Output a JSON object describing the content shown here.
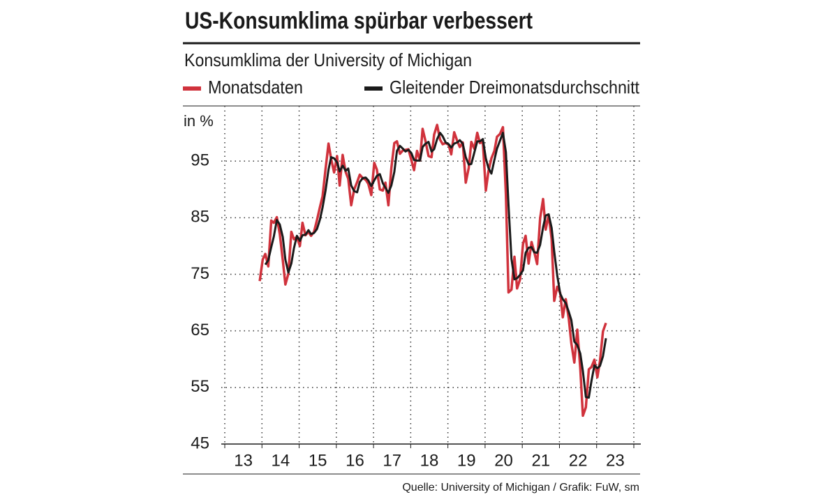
{
  "chart_data": {
    "type": "line",
    "title": "US-Konsumklima spürbar verbessert",
    "subtitle": "Konsumklima der University of Michigan",
    "y_unit_label": "in %",
    "source": "Quelle: University of Michigan / Grafik: FuW, sm",
    "x": [
      13.94,
      14.02,
      14.09,
      14.17,
      14.25,
      14.32,
      14.4,
      14.48,
      14.56,
      14.63,
      14.71,
      14.79,
      14.86,
      14.94,
      15.02,
      15.09,
      15.17,
      15.25,
      15.32,
      15.4,
      15.48,
      15.56,
      15.63,
      15.71,
      15.79,
      15.86,
      15.94,
      16.02,
      16.09,
      16.17,
      16.25,
      16.32,
      16.4,
      16.48,
      16.56,
      16.63,
      16.71,
      16.79,
      16.86,
      16.94,
      17.02,
      17.09,
      17.17,
      17.25,
      17.32,
      17.4,
      17.48,
      17.56,
      17.63,
      17.71,
      17.79,
      17.86,
      17.94,
      18.02,
      18.09,
      18.17,
      18.25,
      18.32,
      18.4,
      18.48,
      18.56,
      18.63,
      18.71,
      18.79,
      18.86,
      18.94,
      19.02,
      19.09,
      19.17,
      19.25,
      19.32,
      19.4,
      19.48,
      19.56,
      19.63,
      19.71,
      19.79,
      19.86,
      19.94,
      20.02,
      20.09,
      20.17,
      20.25,
      20.32,
      20.4,
      20.48,
      20.56,
      20.63,
      20.71,
      20.79,
      20.86,
      20.94,
      21.02,
      21.09,
      21.17,
      21.25,
      21.32,
      21.4,
      21.48,
      21.56,
      21.63,
      21.71,
      21.79,
      21.86,
      21.94,
      22.02,
      22.09,
      22.17,
      22.25,
      22.32,
      22.4,
      22.48,
      22.56,
      22.63,
      22.71,
      22.79,
      22.86,
      22.94,
      23.02,
      23.09,
      23.17,
      23.25
    ],
    "series": [
      {
        "name": "Monatsdaten",
        "color": "#d0323c",
        "values": [
          73.8,
          77.6,
          78.6,
          76.4,
          84.5,
          84.1,
          85.1,
          82.1,
          77.5,
          73.2,
          75.1,
          82.5,
          81.2,
          81.6,
          80.0,
          84.1,
          81.9,
          82.5,
          81.8,
          82.5,
          84.6,
          86.9,
          88.8,
          93.6,
          98.1,
          95.4,
          93.0,
          95.9,
          90.7,
          96.1,
          93.1,
          91.9,
          87.2,
          90.0,
          91.3,
          92.6,
          92.0,
          91.7,
          91.0,
          89.0,
          94.7,
          93.5,
          90.0,
          89.8,
          91.2,
          87.2,
          93.8,
          98.2,
          98.5,
          96.3,
          96.9,
          97.0,
          97.1,
          95.1,
          93.4,
          96.8,
          95.1,
          100.7,
          98.5,
          95.9,
          95.7,
          99.7,
          101.4,
          98.8,
          98.0,
          98.2,
          97.9,
          96.2,
          100.1,
          98.6,
          97.5,
          98.3,
          91.2,
          93.8,
          98.4,
          97.2,
          100.0,
          98.2,
          98.4,
          89.8,
          93.2,
          95.5,
          96.8,
          99.3,
          99.8,
          101.0,
          89.1,
          71.8,
          72.3,
          78.1,
          72.5,
          74.1,
          80.4,
          81.8,
          76.9,
          80.7,
          79.0,
          76.8,
          84.9,
          88.3,
          82.9,
          85.5,
          81.2,
          70.3,
          72.8,
          71.7,
          67.4,
          70.6,
          67.2,
          62.8,
          59.4,
          65.2,
          58.4,
          50.0,
          51.5,
          58.2,
          58.6,
          59.9,
          56.8,
          59.7,
          64.9,
          66.4
        ]
      },
      {
        "name": "Gleitender Dreimonatsdurchschnitt",
        "color": "#1a1a1a",
        "values": [
          null,
          null,
          76.7,
          77.5,
          79.8,
          81.7,
          84.6,
          83.8,
          81.6,
          77.6,
          75.3,
          76.9,
          79.6,
          81.8,
          80.9,
          81.9,
          82.0,
          82.8,
          82.1,
          82.3,
          83.0,
          84.7,
          86.8,
          89.8,
          93.5,
          95.7,
          95.5,
          94.8,
          93.2,
          94.2,
          93.3,
          93.7,
          90.7,
          89.7,
          89.5,
          91.3,
          92.0,
          92.1,
          91.6,
          90.6,
          91.6,
          92.4,
          92.7,
          91.1,
          90.3,
          89.4,
          90.7,
          93.1,
          96.8,
          97.7,
          97.2,
          96.7,
          97.0,
          96.4,
          95.2,
          95.1,
          95.1,
          97.5,
          98.1,
          98.4,
          96.7,
          97.1,
          98.9,
          100.0,
          99.4,
          98.3,
          98.0,
          97.4,
          98.1,
          98.3,
          98.7,
          98.1,
          95.7,
          94.4,
          94.5,
          96.5,
          98.5,
          98.5,
          98.9,
          95.5,
          93.8,
          92.8,
          95.2,
          97.2,
          98.6,
          100.0,
          96.6,
          87.3,
          77.7,
          74.1,
          74.3,
          74.9,
          75.7,
          78.8,
          79.7,
          79.8,
          78.9,
          78.8,
          80.2,
          83.3,
          85.4,
          85.6,
          83.2,
          79.0,
          74.8,
          71.6,
          70.6,
          69.9,
          68.4,
          66.9,
          63.1,
          62.5,
          61.0,
          57.9,
          53.3,
          53.2,
          56.1,
          58.9,
          58.4,
          58.8,
          60.5,
          63.7
        ]
      }
    ],
    "xlim": [
      13,
      24
    ],
    "xgrid": [
      13,
      14,
      15,
      16,
      17,
      18,
      19,
      20,
      21,
      22,
      23,
      24
    ],
    "xticks": [
      {
        "value": 13.5,
        "label": "13"
      },
      {
        "value": 14.5,
        "label": "14"
      },
      {
        "value": 15.5,
        "label": "15"
      },
      {
        "value": 16.5,
        "label": "16"
      },
      {
        "value": 17.5,
        "label": "17"
      },
      {
        "value": 18.5,
        "label": "18"
      },
      {
        "value": 19.5,
        "label": "19"
      },
      {
        "value": 20.5,
        "label": "20"
      },
      {
        "value": 21.5,
        "label": "21"
      },
      {
        "value": 22.5,
        "label": "22"
      },
      {
        "value": 23.5,
        "label": "23"
      }
    ],
    "ylim": [
      45,
      105
    ],
    "yticks": [
      45,
      55,
      65,
      75,
      85,
      95
    ],
    "grid": true,
    "legend": "top"
  }
}
